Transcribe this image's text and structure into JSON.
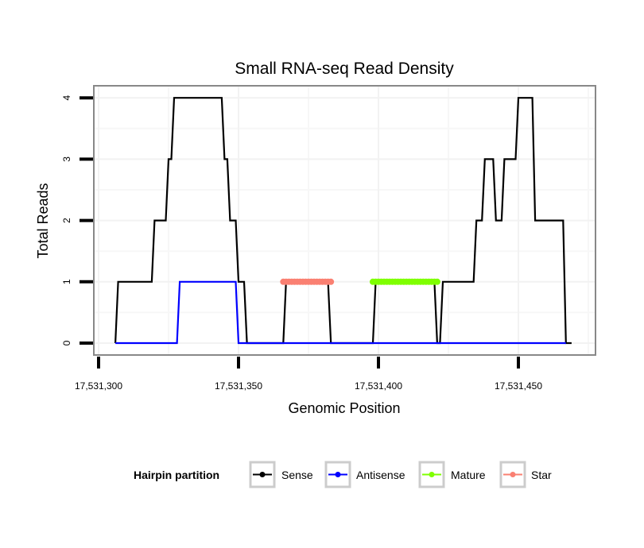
{
  "chart_data": {
    "type": "line",
    "title": "Small RNA-seq Read Density",
    "xlabel": "Genomic Position",
    "ylabel": "Total Reads",
    "xlim": [
      17531297,
      17531485
    ],
    "ylim": [
      -0.2,
      4.2
    ],
    "x_ticks": [
      17531300,
      17531350,
      17531400,
      17531450
    ],
    "x_tick_labels": [
      "17,531,300",
      "17,531,350",
      "17,531,400",
      "17,531,450"
    ],
    "x_minor_grid": [
      17531325,
      17531375,
      17531425,
      17531475
    ],
    "y_ticks": [
      0,
      1,
      2,
      3,
      4
    ],
    "y_tick_labels": [
      "0",
      "1",
      "2",
      "3",
      "4"
    ],
    "y_minor_grid": [
      0.5,
      1.5,
      2.5,
      3.5
    ],
    "grid": true,
    "legend": {
      "title": "Hairpin partition",
      "position": "bottom",
      "entries": [
        {
          "label": "Sense",
          "color": "#000000"
        },
        {
          "label": "Antisense",
          "color": "#0000ff"
        },
        {
          "label": "Mature",
          "color": "#7fff00"
        },
        {
          "label": "Star",
          "color": "#fa8072"
        }
      ]
    },
    "series": [
      {
        "name": "Sense",
        "color": "#000000",
        "style": "line",
        "points": [
          [
            17531306,
            0
          ],
          [
            17531307,
            1
          ],
          [
            17531319,
            1
          ],
          [
            17531320,
            2
          ],
          [
            17531324,
            2
          ],
          [
            17531325,
            3
          ],
          [
            17531326,
            3
          ],
          [
            17531327,
            4
          ],
          [
            17531344,
            4
          ],
          [
            17531345,
            3
          ],
          [
            17531346,
            3
          ],
          [
            17531347,
            2
          ],
          [
            17531349,
            2
          ],
          [
            17531350,
            1
          ],
          [
            17531352,
            1
          ],
          [
            17531353,
            0
          ],
          [
            17531366,
            0
          ],
          [
            17531367,
            1
          ],
          [
            17531382,
            1
          ],
          [
            17531383,
            0
          ],
          [
            17531398,
            0
          ],
          [
            17531399,
            1
          ],
          [
            17531420,
            1
          ],
          [
            17531421,
            0
          ],
          [
            17531422,
            0
          ],
          [
            17531423,
            1
          ],
          [
            17531434,
            1
          ],
          [
            17531435,
            2
          ],
          [
            17531437,
            2
          ],
          [
            17531438,
            3
          ],
          [
            17531441,
            3
          ],
          [
            17531442,
            2
          ],
          [
            17531444,
            2
          ],
          [
            17531445,
            3
          ],
          [
            17531449,
            3
          ],
          [
            17531450,
            4
          ],
          [
            17531455,
            4
          ],
          [
            17531456,
            2
          ],
          [
            17531466,
            2
          ],
          [
            17531467,
            0
          ],
          [
            17531469,
            0
          ]
        ]
      },
      {
        "name": "Antisense",
        "color": "#0000ff",
        "style": "line",
        "points": [
          [
            17531306,
            0
          ],
          [
            17531328,
            0
          ],
          [
            17531329,
            1
          ],
          [
            17531349,
            1
          ],
          [
            17531350,
            0
          ],
          [
            17531467,
            0
          ]
        ]
      },
      {
        "name": "Mature",
        "color": "#7fff00",
        "style": "line+points",
        "points": [
          [
            17531398,
            1
          ],
          [
            17531399,
            1
          ],
          [
            17531400,
            1
          ],
          [
            17531401,
            1
          ],
          [
            17531402,
            1
          ],
          [
            17531403,
            1
          ],
          [
            17531404,
            1
          ],
          [
            17531405,
            1
          ],
          [
            17531406,
            1
          ],
          [
            17531407,
            1
          ],
          [
            17531408,
            1
          ],
          [
            17531409,
            1
          ],
          [
            17531410,
            1
          ],
          [
            17531411,
            1
          ],
          [
            17531412,
            1
          ],
          [
            17531413,
            1
          ],
          [
            17531414,
            1
          ],
          [
            17531415,
            1
          ],
          [
            17531416,
            1
          ],
          [
            17531417,
            1
          ],
          [
            17531418,
            1
          ],
          [
            17531419,
            1
          ],
          [
            17531420,
            1
          ],
          [
            17531421,
            1
          ]
        ]
      },
      {
        "name": "Star",
        "color": "#fa8072",
        "style": "line+points",
        "points": [
          [
            17531366,
            1
          ],
          [
            17531367,
            1
          ],
          [
            17531368,
            1
          ],
          [
            17531369,
            1
          ],
          [
            17531370,
            1
          ],
          [
            17531371,
            1
          ],
          [
            17531372,
            1
          ],
          [
            17531373,
            1
          ],
          [
            17531374,
            1
          ],
          [
            17531375,
            1
          ],
          [
            17531376,
            1
          ],
          [
            17531377,
            1
          ],
          [
            17531378,
            1
          ],
          [
            17531379,
            1
          ],
          [
            17531380,
            1
          ],
          [
            17531381,
            1
          ],
          [
            17531382,
            1
          ],
          [
            17531383,
            1
          ]
        ]
      }
    ]
  }
}
